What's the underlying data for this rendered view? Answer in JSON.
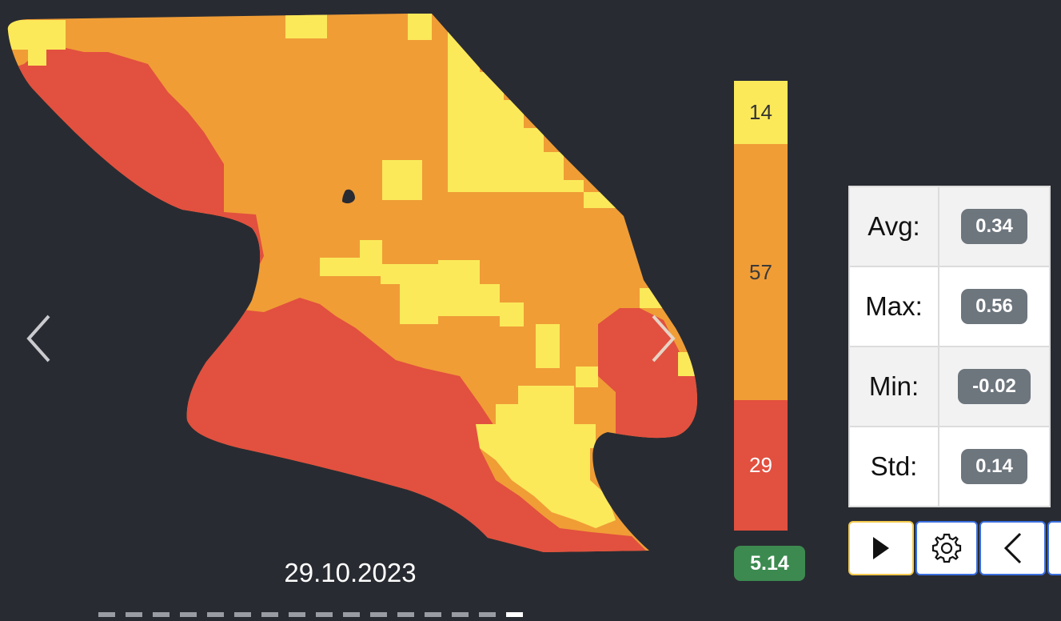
{
  "map": {
    "date": "29.10.2023",
    "colors": {
      "low": "#e2503f",
      "mid": "#f09d36",
      "high": "#fbe95a",
      "hole": "#292b32"
    }
  },
  "navigation": {
    "prev_icon": "chevron-left-icon",
    "next_icon": "chevron-right-icon",
    "pages_total": 16,
    "active_page_index": 15
  },
  "legend": {
    "segments": [
      {
        "label": "14",
        "value": 14,
        "color": "#fbe95a",
        "text_color": "#333333"
      },
      {
        "label": "57",
        "value": 57,
        "color": "#f09d36",
        "text_color": "#3a3a3a"
      },
      {
        "label": "29",
        "value": 29,
        "color": "#e2503f",
        "text_color": "#ffffff"
      }
    ],
    "total_label": "5.14",
    "total_color": "#3c8a4f"
  },
  "stats": [
    {
      "label": "Avg:",
      "value": "0.34"
    },
    {
      "label": "Max:",
      "value": "0.56"
    },
    {
      "label": "Min:",
      "value": "-0.02"
    },
    {
      "label": "Std:",
      "value": "0.14"
    }
  ],
  "controls": {
    "play_icon": "play-icon",
    "settings_icon": "gear-icon",
    "back_icon": "chevron-left-icon",
    "play_border": "#f2c94c",
    "button_border": "#3b6fe0"
  }
}
